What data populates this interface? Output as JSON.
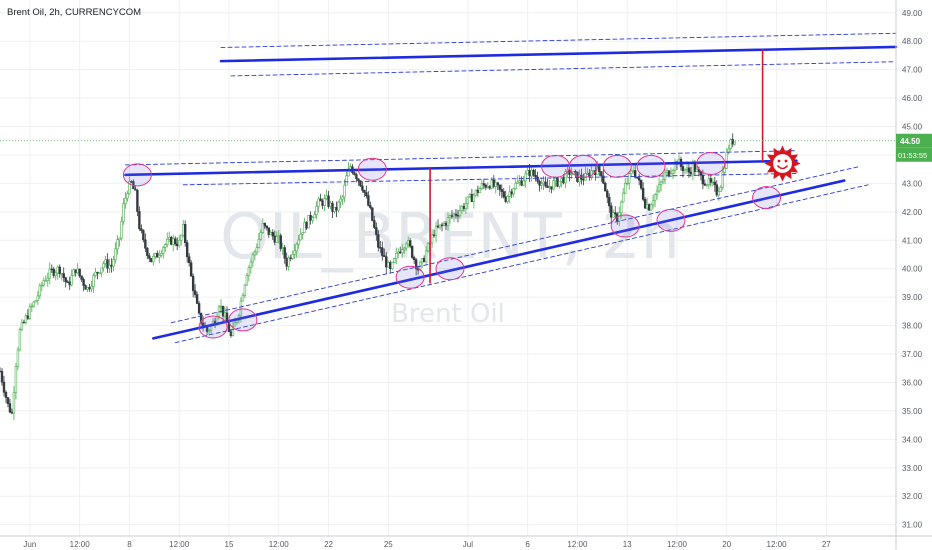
{
  "chart_data": {
    "type": "candlestick",
    "title": "Brent Oil, 2h, CURRENCYCOM",
    "watermark": {
      "symbol": "OIL_BRENT, 2h",
      "name": "Brent Oil"
    },
    "last_price": {
      "value": "44.50",
      "countdown": "01:53:55"
    },
    "ylim": [
      30.6,
      49.45
    ],
    "y_ticks": [
      "49.00",
      "48.00",
      "47.00",
      "46.00",
      "45.00",
      "44.00",
      "43.00",
      "42.00",
      "41.00",
      "40.00",
      "39.00",
      "38.00",
      "37.00",
      "36.00",
      "35.00",
      "34.00",
      "33.00",
      "32.00",
      "31.00"
    ],
    "x_ticks": [
      {
        "label": "Jun",
        "t": 15
      },
      {
        "label": "12:00",
        "t": 40
      },
      {
        "label": "8",
        "t": 65
      },
      {
        "label": "12:00",
        "t": 90
      },
      {
        "label": "15",
        "t": 115
      },
      {
        "label": "12:00",
        "t": 140
      },
      {
        "label": "22",
        "t": 165
      },
      {
        "label": "25",
        "t": 195
      },
      {
        "label": "Jul",
        "t": 235
      },
      {
        "label": "6",
        "t": 265
      },
      {
        "label": "12:00",
        "t": 290
      },
      {
        "label": "13",
        "t": 315
      },
      {
        "label": "12:00",
        "t": 340
      },
      {
        "label": "20",
        "t": 365
      },
      {
        "label": "12:00",
        "t": 390
      },
      {
        "label": "27",
        "t": 415
      }
    ],
    "series": [
      {
        "kind": "close_path",
        "points": [
          [
            0,
            36.4
          ],
          [
            4,
            35.2
          ],
          [
            6,
            34.9
          ],
          [
            8,
            36.7
          ],
          [
            10,
            37.8
          ],
          [
            14,
            38.4
          ],
          [
            18,
            38.9
          ],
          [
            22,
            39.6
          ],
          [
            26,
            39.9
          ],
          [
            30,
            40.0
          ],
          [
            34,
            39.4
          ],
          [
            38,
            40.0
          ],
          [
            42,
            39.5
          ],
          [
            44,
            39.3
          ],
          [
            48,
            39.8
          ],
          [
            52,
            40.2
          ],
          [
            56,
            40.1
          ],
          [
            60,
            41.1
          ],
          [
            62,
            42.2
          ],
          [
            64,
            42.8
          ],
          [
            66,
            43.0
          ],
          [
            68,
            42.6
          ],
          [
            70,
            41.5
          ],
          [
            72,
            40.9
          ],
          [
            76,
            40.3
          ],
          [
            78,
            40.4
          ],
          [
            82,
            40.8
          ],
          [
            86,
            41.0
          ],
          [
            90,
            40.9
          ],
          [
            92,
            41.4
          ],
          [
            96,
            39.7
          ],
          [
            100,
            38.3
          ],
          [
            104,
            37.8
          ],
          [
            106,
            38.0
          ],
          [
            108,
            38.2
          ],
          [
            110,
            38.8
          ],
          [
            114,
            38.1
          ],
          [
            116,
            37.6
          ],
          [
            120,
            38.5
          ],
          [
            124,
            39.9
          ],
          [
            128,
            40.6
          ],
          [
            132,
            41.5
          ],
          [
            136,
            41.2
          ],
          [
            140,
            41.0
          ],
          [
            144,
            40.2
          ],
          [
            148,
            40.8
          ],
          [
            152,
            41.4
          ],
          [
            156,
            41.8
          ],
          [
            160,
            42.3
          ],
          [
            164,
            42.4
          ],
          [
            168,
            42.0
          ],
          [
            172,
            42.5
          ],
          [
            174,
            43.2
          ],
          [
            176,
            43.6
          ],
          [
            178,
            43.4
          ],
          [
            182,
            42.9
          ],
          [
            186,
            42.0
          ],
          [
            190,
            40.8
          ],
          [
            194,
            40.2
          ],
          [
            196,
            39.9
          ],
          [
            200,
            40.6
          ],
          [
            204,
            41.0
          ],
          [
            206,
            40.7
          ],
          [
            210,
            40.0
          ],
          [
            212,
            40.2
          ],
          [
            214,
            40.6
          ],
          [
            216,
            40.9
          ],
          [
            218,
            41.3
          ],
          [
            222,
            41.5
          ],
          [
            226,
            41.8
          ],
          [
            230,
            42.0
          ],
          [
            234,
            42.3
          ],
          [
            238,
            42.6
          ],
          [
            242,
            42.9
          ],
          [
            246,
            43.0
          ],
          [
            250,
            42.8
          ],
          [
            254,
            42.5
          ],
          [
            258,
            42.9
          ],
          [
            262,
            43.1
          ],
          [
            266,
            43.4
          ],
          [
            270,
            43.2
          ],
          [
            274,
            42.8
          ],
          [
            278,
            43.0
          ],
          [
            282,
            43.1
          ],
          [
            286,
            43.4
          ],
          [
            290,
            43.2
          ],
          [
            294,
            43.2
          ],
          [
            298,
            43.5
          ],
          [
            302,
            43.4
          ],
          [
            304,
            42.8
          ],
          [
            306,
            42.1
          ],
          [
            308,
            41.8
          ],
          [
            310,
            41.8
          ],
          [
            312,
            42.3
          ],
          [
            314,
            42.9
          ],
          [
            316,
            43.2
          ],
          [
            318,
            43.5
          ],
          [
            320,
            43.2
          ],
          [
            322,
            42.8
          ],
          [
            324,
            42.3
          ],
          [
            326,
            42.2
          ],
          [
            328,
            42.5
          ],
          [
            330,
            42.7
          ],
          [
            332,
            43.0
          ],
          [
            334,
            43.3
          ],
          [
            336,
            43.4
          ],
          [
            338,
            43.6
          ],
          [
            340,
            43.8
          ],
          [
            342,
            43.6
          ],
          [
            344,
            43.5
          ],
          [
            346,
            43.4
          ],
          [
            348,
            43.6
          ],
          [
            352,
            43.2
          ],
          [
            356,
            43.0
          ],
          [
            358,
            42.9
          ],
          [
            360,
            42.7
          ],
          [
            362,
            43.0
          ],
          [
            364,
            43.7
          ],
          [
            366,
            44.3
          ],
          [
            368,
            44.5
          ],
          [
            369,
            44.5
          ]
        ]
      }
    ],
    "annotations": {
      "channel_upper": {
        "p1": [
          0.0,
          47.3
        ],
        "p2": [
          1.0,
          47.8
        ]
      },
      "triangle_top": {
        "p1": [
          0.0,
          43.3
        ],
        "p2": [
          1.0,
          43.8
        ]
      },
      "support_line": {
        "p1": [
          0.0,
          37.5
        ],
        "p2": [
          1.0,
          43.0
        ]
      },
      "target_arrows": [
        {
          "from": 43.8,
          "to": 39.5
        },
        {
          "from": 47.7,
          "to": 43.8
        }
      ]
    }
  }
}
